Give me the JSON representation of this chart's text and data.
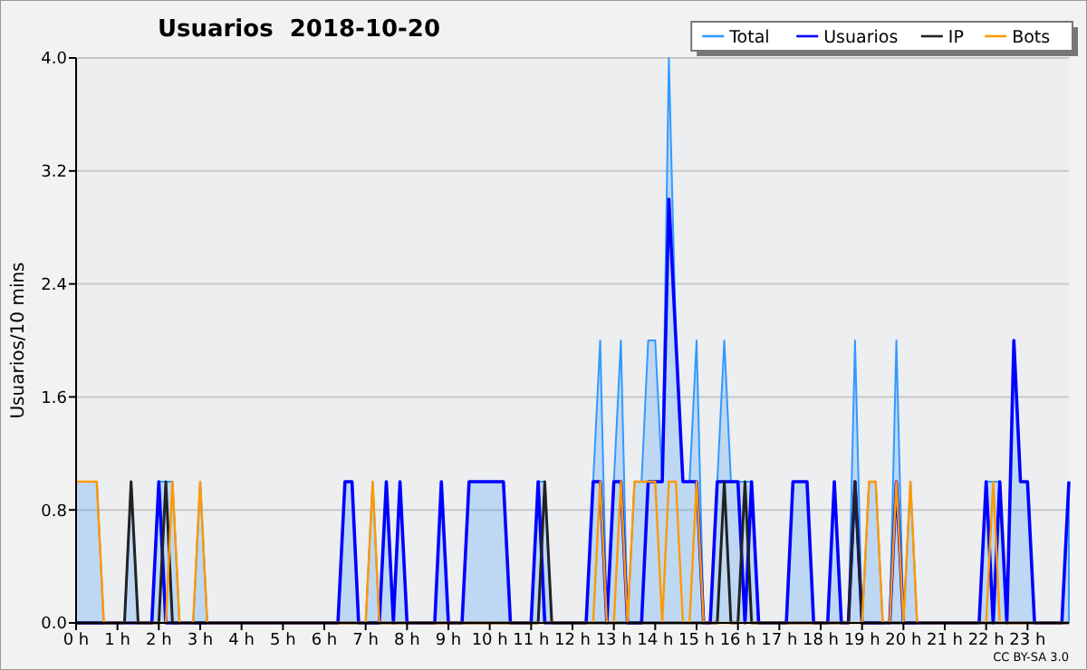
{
  "chart_data": {
    "type": "line",
    "title": "Usuarios  2018-10-20",
    "ylabel": "Usuarios/10 mins",
    "annotations": [
      "CC BY-SA 3.0"
    ],
    "xlim": [
      0,
      24
    ],
    "xticks": [
      {
        "value": 0,
        "label": "0 h"
      },
      {
        "value": 1,
        "label": "1 h"
      },
      {
        "value": 2,
        "label": "2 h"
      },
      {
        "value": 3,
        "label": "3 h"
      },
      {
        "value": 4,
        "label": "4 h"
      },
      {
        "value": 5,
        "label": "5 h"
      },
      {
        "value": 6,
        "label": "6 h"
      },
      {
        "value": 7,
        "label": "7 h"
      },
      {
        "value": 8,
        "label": "8 h"
      },
      {
        "value": 9,
        "label": "9 h"
      },
      {
        "value": 10,
        "label": "10 h"
      },
      {
        "value": 11,
        "label": "11 h"
      },
      {
        "value": 12,
        "label": "12 h"
      },
      {
        "value": 13,
        "label": "13 h"
      },
      {
        "value": 14,
        "label": "14 h"
      },
      {
        "value": 15,
        "label": "15 h"
      },
      {
        "value": 16,
        "label": "16 h"
      },
      {
        "value": 17,
        "label": "17 h"
      },
      {
        "value": 18,
        "label": "18 h"
      },
      {
        "value": 19,
        "label": "19 h"
      },
      {
        "value": 20,
        "label": "20 h"
      },
      {
        "value": 21,
        "label": "21 h"
      },
      {
        "value": 22,
        "label": "22 h"
      },
      {
        "value": 23,
        "label": "23 h"
      }
    ],
    "ylim": [
      0,
      4
    ],
    "yticks": [
      {
        "value": 0,
        "label": "0.0"
      },
      {
        "value": 0.8,
        "label": "0.8"
      },
      {
        "value": 1.6,
        "label": "1.6"
      },
      {
        "value": 2.4,
        "label": "2.4"
      },
      {
        "value": 3.2,
        "label": "3.2"
      },
      {
        "value": 4,
        "label": "4.0"
      }
    ],
    "grid": "y",
    "legend": "top right",
    "series": [
      {
        "name": "Total",
        "type": "area",
        "color": "#3399ff",
        "x": [
          0,
          0.5,
          0.67,
          1.17,
          1.33,
          1.5,
          1.83,
          2.0,
          2.33,
          2.5,
          2.83,
          3.0,
          3.17,
          6.33,
          6.5,
          6.67,
          6.83,
          7.0,
          7.17,
          7.33,
          7.5,
          7.67,
          7.83,
          8.0,
          8.67,
          8.83,
          9.0,
          9.33,
          9.5,
          10.33,
          10.5,
          11.0,
          11.17,
          11.33,
          11.5,
          12.33,
          12.5,
          12.67,
          12.83,
          13.0,
          13.17,
          13.33,
          13.5,
          13.67,
          13.83,
          14.0,
          14.17,
          14.33,
          14.5,
          14.67,
          14.83,
          15.0,
          15.17,
          15.33,
          15.5,
          15.67,
          15.83,
          16.0,
          16.17,
          16.33,
          16.5,
          17.17,
          17.33,
          17.67,
          17.83,
          18.17,
          18.33,
          18.5,
          18.67,
          18.83,
          19.0,
          19.17,
          19.33,
          19.5,
          19.67,
          19.83,
          20.0,
          20.17,
          20.33,
          21.83,
          22.0,
          22.33,
          22.5,
          22.67,
          22.83,
          23.0,
          23.17,
          23.83,
          24.0
        ],
        "values": [
          1,
          1,
          0,
          0,
          1,
          0,
          0,
          1,
          1,
          0,
          0,
          1,
          0,
          0,
          1,
          1,
          0,
          0,
          1,
          0,
          1,
          0,
          1,
          0,
          0,
          1,
          0,
          0,
          1,
          1,
          0,
          0,
          1,
          1,
          0,
          0,
          1,
          2,
          0,
          1,
          2,
          0,
          1,
          1,
          2,
          2,
          1,
          4,
          2,
          1,
          1,
          2,
          0,
          0,
          1,
          2,
          1,
          1,
          1,
          1,
          0,
          0,
          1,
          1,
          0,
          0,
          1,
          0,
          0,
          2,
          0,
          1,
          1,
          0,
          0,
          2,
          0,
          1,
          0,
          0,
          1,
          1,
          0,
          2,
          1,
          1,
          0,
          0,
          1
        ]
      },
      {
        "name": "Usuarios",
        "color": "#0000ff",
        "x": [
          0,
          1.83,
          2.0,
          2.17,
          6.33,
          6.5,
          6.67,
          6.83,
          7.33,
          7.5,
          7.67,
          7.83,
          8.0,
          8.67,
          8.83,
          9.0,
          9.33,
          9.5,
          10.33,
          10.5,
          11.0,
          11.17,
          11.33,
          12.33,
          12.5,
          12.67,
          12.83,
          13.0,
          13.17,
          13.33,
          13.67,
          13.83,
          14.17,
          14.33,
          14.67,
          15.0,
          15.17,
          15.33,
          15.5,
          16.0,
          16.17,
          16.33,
          16.5,
          17.17,
          17.33,
          17.67,
          17.83,
          18.17,
          18.33,
          18.5,
          18.67,
          18.83,
          19.0,
          19.67,
          19.83,
          20.0,
          21.83,
          22.0,
          22.17,
          22.33,
          22.5,
          22.67,
          22.83,
          23.0,
          23.17,
          23.83,
          24.0
        ],
        "values": [
          0,
          0,
          1,
          0,
          0,
          1,
          1,
          0,
          0,
          1,
          0,
          1,
          0,
          0,
          1,
          0,
          0,
          1,
          1,
          0,
          0,
          1,
          0,
          0,
          1,
          1,
          0,
          1,
          1,
          0,
          0,
          1,
          1,
          3,
          1,
          1,
          0,
          0,
          1,
          1,
          0,
          1,
          0,
          0,
          1,
          1,
          0,
          0,
          1,
          0,
          0,
          1,
          0,
          0,
          1,
          0,
          0,
          1,
          0,
          1,
          0,
          2,
          1,
          1,
          0,
          0,
          1
        ]
      },
      {
        "name": "IP",
        "color": "#222222",
        "x": [
          0,
          1.17,
          1.33,
          1.5,
          2.0,
          2.17,
          2.33,
          11.17,
          11.33,
          11.5,
          15.5,
          15.67,
          15.83,
          16.0,
          16.17,
          16.33,
          18.67,
          18.83,
          19.0,
          24
        ],
        "values": [
          0,
          0,
          1,
          0,
          0,
          1,
          0,
          0,
          1,
          0,
          0,
          1,
          0,
          0,
          1,
          0,
          0,
          1,
          0,
          0
        ]
      },
      {
        "name": "Bots",
        "color": "#ff9900",
        "x": [
          0,
          0.5,
          0.67,
          2.17,
          2.33,
          2.5,
          2.83,
          3.0,
          3.17,
          7.0,
          7.17,
          7.33,
          12.5,
          12.67,
          12.83,
          13.0,
          13.17,
          13.33,
          13.5,
          14.0,
          14.17,
          14.33,
          14.5,
          14.67,
          14.83,
          15.0,
          15.17,
          19.0,
          19.17,
          19.33,
          19.5,
          19.67,
          19.83,
          20.0,
          20.17,
          20.33,
          22.0,
          22.17,
          22.33,
          24
        ],
        "values": [
          1,
          1,
          0,
          0,
          1,
          0,
          0,
          1,
          0,
          0,
          1,
          0,
          0,
          1,
          0,
          0,
          1,
          0,
          1,
          1,
          0,
          1,
          1,
          0,
          0,
          1,
          0,
          0,
          1,
          1,
          0,
          0,
          1,
          0,
          1,
          0,
          0,
          1,
          0,
          0
        ]
      }
    ]
  }
}
